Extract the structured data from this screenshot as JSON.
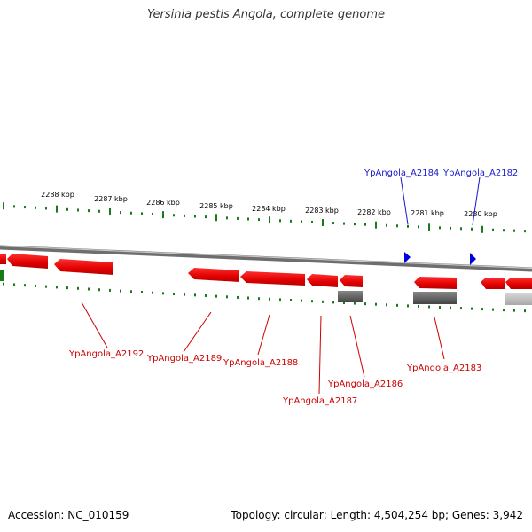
{
  "title": "Yersinia pestis Angola, complete genome",
  "footer": {
    "accession": "Accession: NC_010159",
    "summary": "Topology: circular; Length: 4,504,254 bp; Genes: 3,942"
  },
  "colors": {
    "backbone": "#8c8c8c",
    "tick": "#1a7a1a",
    "gene_minus": "#e60000",
    "gene_plus": "#0000dd",
    "label_minus": "#cc0000",
    "label_plus": "#1a1acc",
    "rna_dark": "#666666",
    "rna_light": "#bbbbbb"
  },
  "scale_labels": [
    {
      "text": "2288 kbp"
    },
    {
      "text": "2287 kbp"
    },
    {
      "text": "2286 kbp"
    },
    {
      "text": "2285 kbp"
    },
    {
      "text": "2284 kbp"
    },
    {
      "text": "2283 kbp"
    },
    {
      "text": "2282 kbp"
    },
    {
      "text": "2281 kbp"
    },
    {
      "text": "2280 kbp"
    }
  ],
  "gene_labels": [
    {
      "text": "YpAngola_A2184",
      "strand": "plus"
    },
    {
      "text": "YpAngola_A2182",
      "strand": "plus"
    },
    {
      "text": "YpAngola_A2192",
      "strand": "minus"
    },
    {
      "text": "YpAngola_A2189",
      "strand": "minus"
    },
    {
      "text": "YpAngola_A2188",
      "strand": "minus"
    },
    {
      "text": "YpAngola_A2186",
      "strand": "minus"
    },
    {
      "text": "YpAngola_A2187",
      "strand": "minus"
    },
    {
      "text": "YpAngola_A2183",
      "strand": "minus"
    }
  ]
}
